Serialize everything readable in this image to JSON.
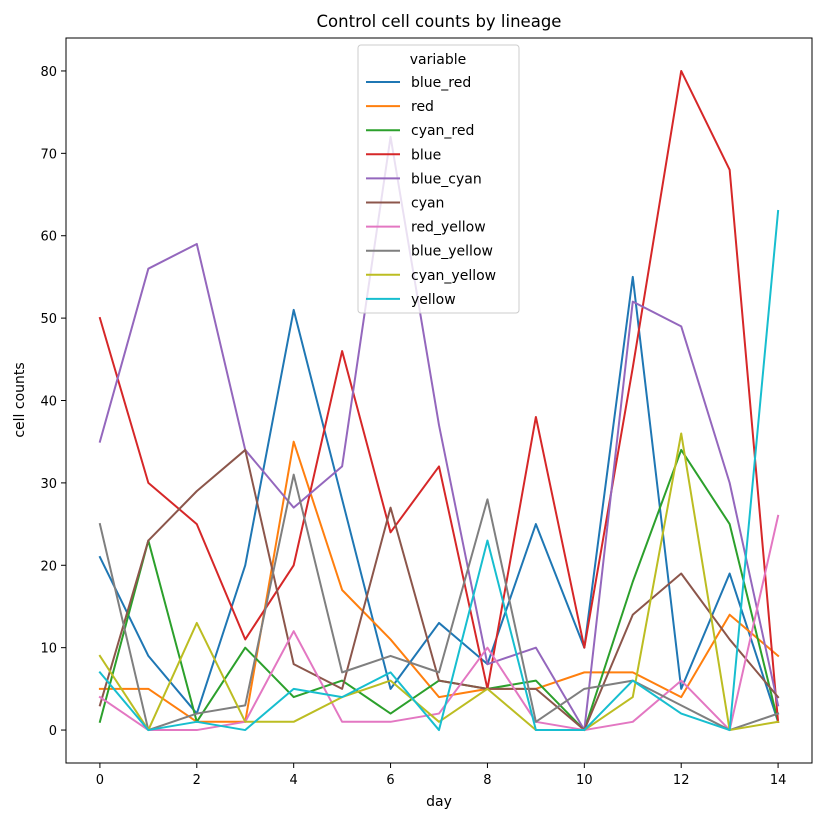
{
  "chart_data": {
    "type": "line",
    "title": "Control cell counts by lineage",
    "xlabel": "day",
    "ylabel": "cell counts",
    "xlim": [
      -0.7,
      14.7
    ],
    "ylim": [
      -4,
      84
    ],
    "xticks": [
      0,
      2,
      4,
      6,
      8,
      10,
      12,
      14
    ],
    "yticks": [
      0,
      10,
      20,
      30,
      40,
      50,
      60,
      70,
      80
    ],
    "grid": false,
    "legend": {
      "title": "variable",
      "placement": "top-center"
    },
    "x": [
      0,
      1,
      2,
      3,
      4,
      5,
      6,
      7,
      8,
      9,
      10,
      11,
      12,
      13,
      14
    ],
    "series": [
      {
        "name": "blue_red",
        "color": "#1f77b4",
        "values": [
          21,
          9,
          2,
          20,
          51,
          28,
          5,
          13,
          8,
          25,
          10,
          55,
          5,
          19,
          1
        ]
      },
      {
        "name": "red",
        "color": "#ff7f0e",
        "values": [
          5,
          5,
          1,
          1,
          35,
          17,
          11,
          4,
          5,
          5,
          7,
          7,
          4,
          14,
          9
        ]
      },
      {
        "name": "cyan_red",
        "color": "#2ca02c",
        "values": [
          1,
          23,
          1,
          10,
          4,
          6,
          2,
          6,
          5,
          6,
          0,
          18,
          34,
          25,
          1
        ]
      },
      {
        "name": "blue",
        "color": "#d62728",
        "values": [
          50,
          30,
          25,
          11,
          20,
          46,
          24,
          32,
          5,
          38,
          10,
          44,
          80,
          68,
          1
        ]
      },
      {
        "name": "blue_cyan",
        "color": "#9467bd",
        "values": [
          35,
          56,
          59,
          34,
          27,
          32,
          72,
          37,
          8,
          10,
          0,
          52,
          49,
          30,
          3
        ]
      },
      {
        "name": "cyan",
        "color": "#8c564b",
        "values": [
          3,
          23,
          29,
          34,
          8,
          5,
          27,
          6,
          5,
          5,
          0,
          14,
          19,
          11,
          4
        ]
      },
      {
        "name": "red_yellow",
        "color": "#e377c2",
        "values": [
          4,
          0,
          0,
          1,
          12,
          1,
          1,
          2,
          10,
          1,
          0,
          1,
          6,
          0,
          26
        ]
      },
      {
        "name": "blue_yellow",
        "color": "#7f7f7f",
        "values": [
          25,
          0,
          2,
          3,
          31,
          7,
          9,
          7,
          28,
          1,
          5,
          6,
          3,
          0,
          2
        ]
      },
      {
        "name": "cyan_yellow",
        "color": "#bcbd22",
        "values": [
          9,
          0,
          13,
          1,
          1,
          4,
          6,
          1,
          5,
          0,
          0,
          4,
          36,
          0,
          1
        ]
      },
      {
        "name": "yellow",
        "color": "#17becf",
        "values": [
          7,
          0,
          1,
          0,
          5,
          4,
          7,
          0,
          23,
          0,
          0,
          6,
          2,
          0,
          63
        ]
      }
    ]
  }
}
